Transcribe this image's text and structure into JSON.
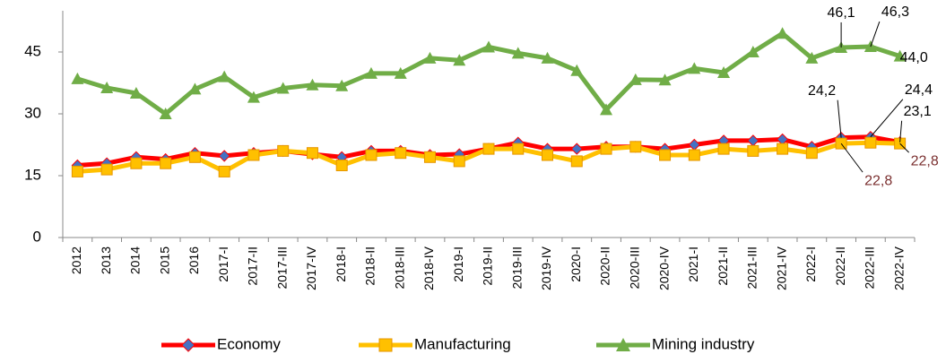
{
  "chart_data": {
    "type": "line",
    "categories": [
      "2012",
      "2013",
      "2014",
      "2015",
      "2016",
      "2017-I",
      "2017-II",
      "2017-III",
      "2017-IV",
      "2018-I",
      "2018-II",
      "2018-III",
      "2018-IV",
      "2019-I",
      "2019-II",
      "2019-III",
      "2019-IV",
      "2020-I",
      "2020-II",
      "2020-III",
      "2020-IV",
      "2021-I",
      "2021-II",
      "2021-III",
      "2021-IV",
      "2022-I",
      "2022-II",
      "2022-III",
      "2022-IV"
    ],
    "series": [
      {
        "name": "Economy",
        "color": "#ff0000",
        "marker_color": "#4472c4",
        "marker": "diamond",
        "values": [
          17.5,
          18,
          19.5,
          19,
          20.5,
          19.8,
          20.5,
          21,
          20.2,
          19.5,
          21,
          21,
          20,
          20.2,
          21.5,
          23,
          21.5,
          21.5,
          22,
          22,
          21.5,
          22.5,
          23.5,
          23.5,
          23.8,
          22,
          24.2,
          24.4,
          23.1
        ],
        "value_labels": [
          null,
          null,
          null,
          null,
          null,
          null,
          null,
          null,
          null,
          null,
          null,
          null,
          null,
          null,
          null,
          null,
          null,
          null,
          null,
          null,
          null,
          null,
          null,
          null,
          null,
          null,
          "24,2",
          "24,4",
          "23,1"
        ]
      },
      {
        "name": "Manufacturing",
        "color": "#ffc000",
        "marker_color": "#ffc000",
        "marker": "square",
        "values": [
          16,
          16.5,
          18,
          18,
          19.5,
          16,
          20,
          21,
          20.5,
          17.5,
          20,
          20.5,
          19.5,
          18.5,
          21.5,
          21.5,
          20,
          18.5,
          21.5,
          22,
          20,
          20,
          21.5,
          21,
          21.5,
          20.5,
          22.8,
          23,
          22.8
        ],
        "value_labels": [
          null,
          null,
          null,
          null,
          null,
          null,
          null,
          null,
          null,
          null,
          null,
          null,
          null,
          null,
          null,
          null,
          null,
          null,
          null,
          null,
          null,
          null,
          null,
          null,
          null,
          null,
          "22,8",
          null,
          "22,8"
        ]
      },
      {
        "name": "Mining industry",
        "color": "#70ad47",
        "marker_color": "#70ad47",
        "marker": "triangle",
        "values": [
          38.5,
          36.3,
          35,
          30,
          36,
          39,
          34,
          36.2,
          37,
          36.8,
          39.8,
          39.8,
          43.5,
          43,
          46.2,
          44.7,
          43.5,
          40.5,
          31,
          38.3,
          38.2,
          41,
          40,
          45,
          49.5,
          43.5,
          46.1,
          46.3,
          44.0
        ],
        "value_labels": [
          null,
          null,
          null,
          null,
          null,
          null,
          null,
          null,
          null,
          null,
          null,
          null,
          null,
          null,
          null,
          null,
          null,
          null,
          null,
          null,
          null,
          null,
          null,
          null,
          null,
          null,
          "46,1",
          "46,3",
          "44,0"
        ]
      }
    ],
    "ylim": [
      0,
      55
    ],
    "yticks": [
      0,
      15,
      30,
      45
    ],
    "grid": false,
    "legend": "bottom"
  }
}
